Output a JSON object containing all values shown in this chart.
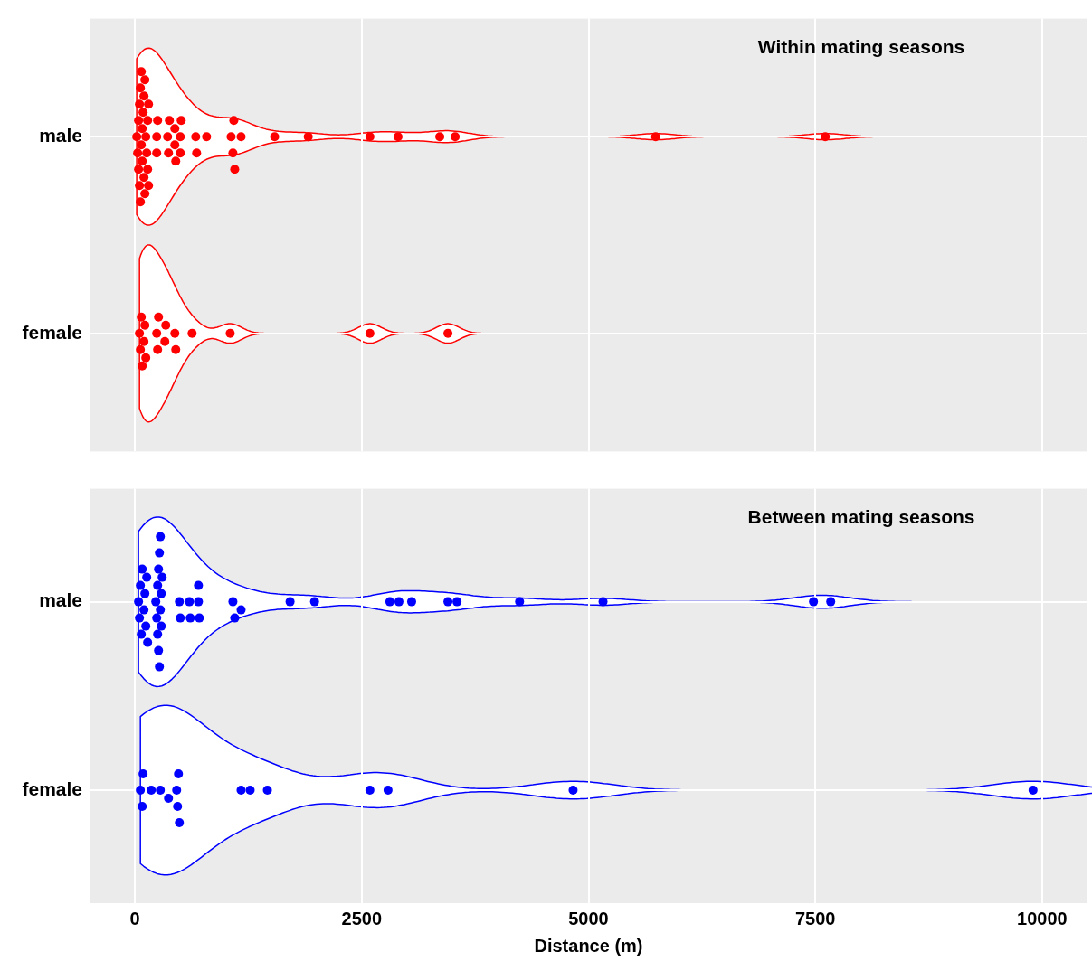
{
  "chart_data": [
    {
      "type": "scatter",
      "orientation": "horizontal",
      "title": "Within mating seasons",
      "categories": [
        "male",
        "female"
      ],
      "xlim": [
        -500,
        10500
      ],
      "xticks": [
        0,
        2500,
        5000,
        7500,
        10000
      ],
      "grid": true,
      "tick_labels": "y",
      "marker": "circle",
      "series": [
        {
          "color": "#ff0000",
          "x": [
            "male",
            "male",
            "male",
            "male",
            "male",
            "male",
            "male",
            "male",
            "male",
            "male",
            "male",
            "male",
            "male",
            "male",
            "male",
            "male",
            "male",
            "male",
            "male",
            "male",
            "male",
            "male",
            "male",
            "male",
            "male",
            "male",
            "male",
            "male",
            "male",
            "male",
            "male",
            "male",
            "male",
            "male",
            "male",
            "male",
            "male",
            "male",
            "male",
            "male",
            "male",
            "male",
            "male",
            "male",
            "male",
            "male",
            "male",
            "male",
            "male",
            "male",
            "male",
            "female",
            "female",
            "female",
            "female",
            "female",
            "female",
            "female",
            "female",
            "female",
            "female",
            "female",
            "female",
            "female",
            "female",
            "female",
            "female",
            "female",
            "female"
          ],
          "values": [
            20,
            30,
            40,
            40,
            50,
            50,
            60,
            60,
            70,
            70,
            80,
            80,
            90,
            100,
            100,
            110,
            110,
            120,
            130,
            140,
            140,
            150,
            150,
            240,
            240,
            250,
            360,
            370,
            380,
            440,
            440,
            450,
            500,
            500,
            510,
            670,
            680,
            790,
            1060,
            1080,
            1090,
            1100,
            1170,
            1540,
            1910,
            2590,
            2900,
            3360,
            3530,
            5740,
            7610,
            50,
            60,
            70,
            80,
            100,
            110,
            120,
            240,
            250,
            260,
            330,
            340,
            440,
            450,
            630,
            1050,
            2590,
            3450
          ]
        }
      ]
    },
    {
      "type": "scatter",
      "orientation": "horizontal",
      "title": "Between mating seasons",
      "xlabel": "Distance (m)",
      "categories": [
        "male",
        "female"
      ],
      "xlim": [
        -500,
        10500
      ],
      "xticks": [
        0,
        2500,
        5000,
        7500,
        10000
      ],
      "grid": true,
      "marker": "circle",
      "series": [
        {
          "color": "#0000ff",
          "x": [
            "male",
            "male",
            "male",
            "male",
            "male",
            "male",
            "male",
            "male",
            "male",
            "male",
            "male",
            "male",
            "male",
            "male",
            "male",
            "male",
            "male",
            "male",
            "male",
            "male",
            "male",
            "male",
            "male",
            "male",
            "male",
            "male",
            "male",
            "male",
            "male",
            "male",
            "male",
            "male",
            "male",
            "male",
            "male",
            "male",
            "male",
            "male",
            "male",
            "male",
            "male",
            "male",
            "male",
            "male",
            "female",
            "female",
            "female",
            "female",
            "female",
            "female",
            "female",
            "female",
            "female",
            "female",
            "female",
            "female",
            "female",
            "female",
            "female",
            "female",
            "female"
          ],
          "values": [
            40,
            50,
            60,
            70,
            80,
            100,
            110,
            120,
            130,
            140,
            230,
            240,
            250,
            250,
            260,
            260,
            270,
            270,
            280,
            280,
            290,
            290,
            300,
            490,
            500,
            600,
            610,
            700,
            700,
            710,
            1080,
            1100,
            1170,
            1710,
            1980,
            2810,
            2910,
            3050,
            3450,
            3550,
            4240,
            5160,
            7480,
            7670,
            60,
            80,
            90,
            180,
            280,
            370,
            460,
            470,
            480,
            490,
            1170,
            1270,
            1460,
            2590,
            2790,
            4830,
            9900
          ]
        }
      ]
    }
  ]
}
